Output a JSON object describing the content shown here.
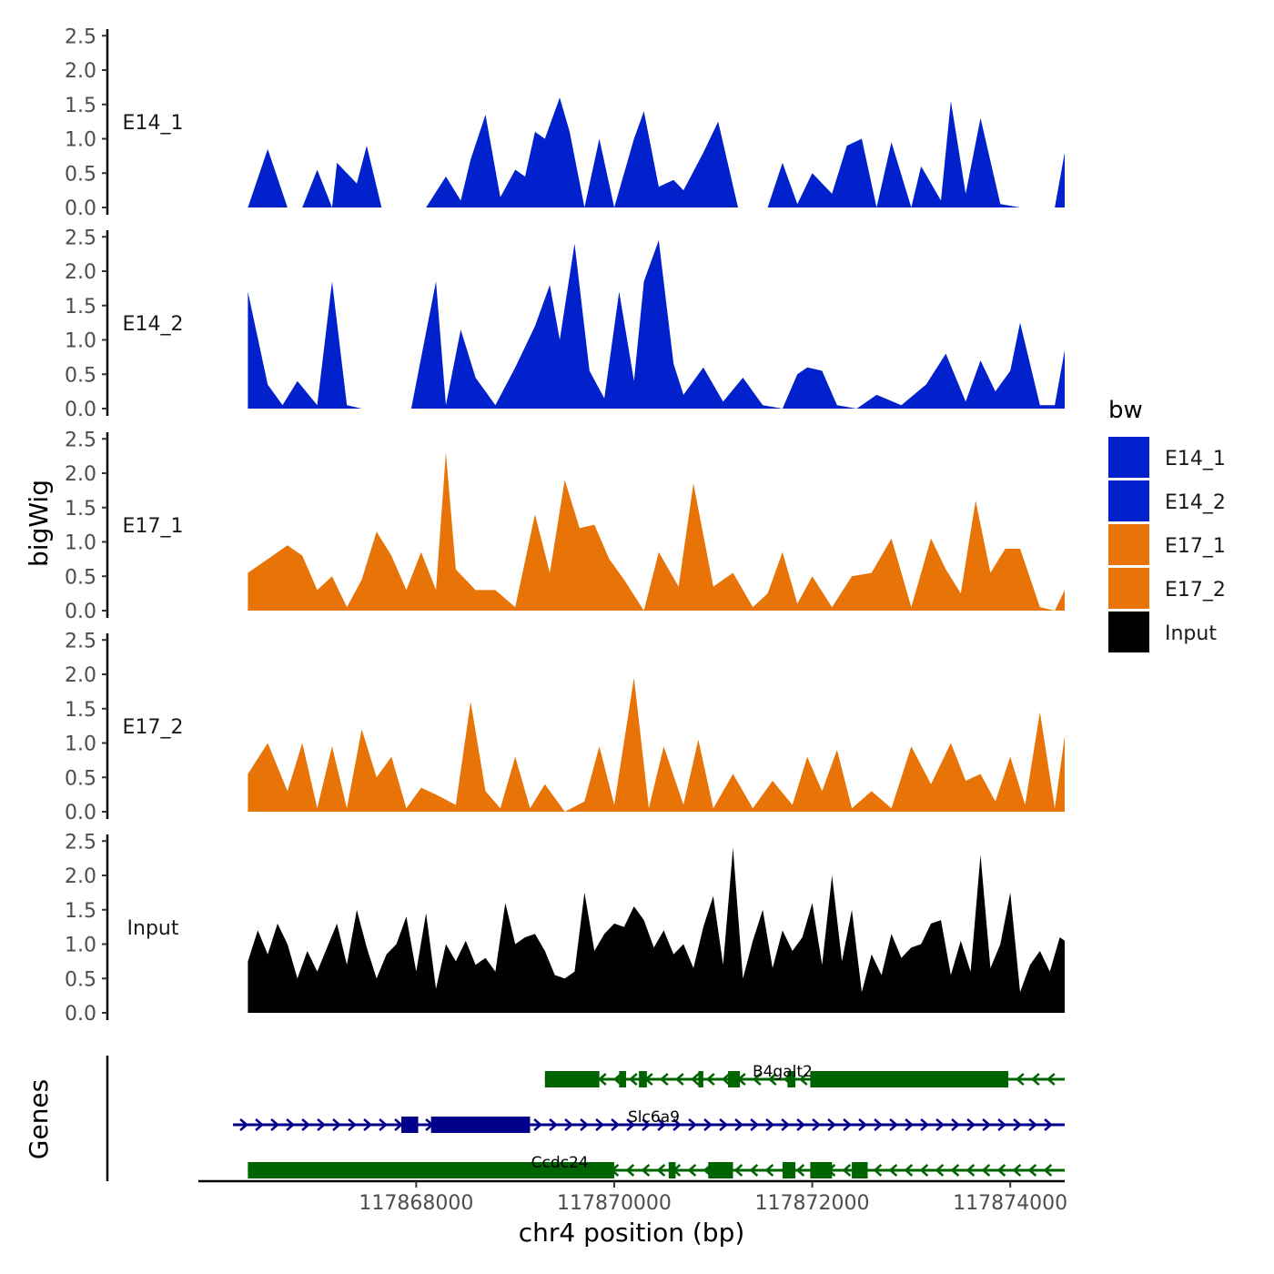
{
  "chart_data": {
    "type": "area",
    "title": "",
    "xlabel": "chr4 position (bp)",
    "ylabel": "bigWig",
    "genes_label": "Genes",
    "xlim": [
      117865800,
      117874550
    ],
    "x_ticks": [
      117868000,
      117870000,
      117872000,
      117874000
    ],
    "x_tick_labels": [
      "117868000",
      "117870000",
      "117872000",
      "117874000"
    ],
    "ylim": [
      0,
      2.6
    ],
    "y_ticks": [
      0,
      0.5,
      1,
      1.5,
      2,
      2.5
    ],
    "y_tick_labels": [
      "0.0",
      "0.5",
      "1.0",
      "1.5",
      "2.0",
      "2.5"
    ],
    "legend": {
      "title": "bw",
      "position": "right",
      "entries": [
        {
          "name": "E14_1",
          "color": "#0021CC"
        },
        {
          "name": "E14_2",
          "color": "#0021CC"
        },
        {
          "name": "E17_1",
          "color": "#E87306"
        },
        {
          "name": "E17_2",
          "color": "#E87306"
        },
        {
          "name": "Input",
          "color": "#000000"
        }
      ]
    },
    "series": [
      {
        "name": "E14_1",
        "color": "#0021CC",
        "x": [
          117866300,
          117866500,
          117866700,
          117866850,
          117867000,
          117867150,
          117867200,
          117867400,
          117867500,
          117867650,
          117867700,
          117867850,
          117867950,
          117868100,
          117868300,
          117868450,
          117868550,
          117868700,
          117868850,
          117869000,
          117869100,
          117869200,
          117869300,
          117869450,
          117869550,
          117869700,
          117869850,
          117870000,
          117870200,
          117870300,
          117870450,
          117870600,
          117870700,
          117870900,
          117871050,
          117871250,
          117871550,
          117871700,
          117871850,
          117872000,
          117872200,
          117872350,
          117872500,
          117872650,
          117872800,
          117873000,
          117873100,
          117873300,
          117873400,
          117873550,
          117873700,
          117873900,
          117874100,
          117874250,
          117874450,
          117874550
        ],
        "y": [
          0,
          0.85,
          0,
          0,
          0.55,
          0,
          0.65,
          0.35,
          0.9,
          0,
          0,
          0,
          0,
          0,
          0.45,
          0.1,
          0.7,
          1.35,
          0.15,
          0.55,
          0.45,
          1.1,
          1.0,
          1.6,
          1.1,
          0,
          1.0,
          0,
          1.0,
          1.4,
          0.3,
          0.4,
          0.25,
          0.8,
          1.25,
          0,
          0,
          0.65,
          0.05,
          0.5,
          0.2,
          0.9,
          1.0,
          0,
          0.95,
          0,
          0.6,
          0.1,
          1.55,
          0.2,
          1.3,
          0.05,
          0,
          0,
          0,
          0.8
        ]
      },
      {
        "name": "E14_2",
        "color": "#0021CC",
        "x": [
          117866300,
          117866500,
          117866650,
          117866800,
          117867000,
          117867150,
          117867300,
          117867450,
          117867700,
          117867950,
          117868200,
          117868300,
          117868450,
          117868600,
          117868800,
          117869000,
          117869200,
          117869350,
          117869450,
          117869600,
          117869750,
          117869900,
          117870050,
          117870200,
          117870300,
          117870450,
          117870600,
          117870700,
          117870900,
          117871100,
          117871300,
          117871500,
          117871700,
          117871850,
          117871950,
          117872100,
          117872250,
          117872450,
          117872650,
          117872900,
          117873150,
          117873350,
          117873550,
          117873700,
          117873850,
          117874000,
          117874100,
          117874300,
          117874450,
          117874550
        ],
        "y": [
          1.7,
          0.35,
          0.05,
          0.4,
          0.05,
          1.85,
          0.05,
          0,
          0,
          0,
          1.85,
          0.05,
          1.15,
          0.45,
          0.05,
          0.6,
          1.2,
          1.8,
          1.0,
          2.4,
          0.55,
          0.15,
          1.7,
          0.4,
          1.85,
          2.45,
          0.65,
          0.2,
          0.6,
          0.1,
          0.45,
          0.05,
          0,
          0.5,
          0.6,
          0.55,
          0.05,
          0,
          0.2,
          0.05,
          0.35,
          0.8,
          0.1,
          0.7,
          0.25,
          0.55,
          1.25,
          0.05,
          0.05,
          0.85
        ]
      },
      {
        "name": "E17_1",
        "color": "#E87306",
        "x": [
          117866300,
          117866500,
          117866700,
          117866850,
          117867000,
          117867150,
          117867300,
          117867450,
          117867600,
          117867750,
          117867900,
          117868050,
          117868200,
          117868300,
          117868400,
          117868600,
          117868800,
          117869000,
          117869200,
          117869350,
          117869500,
          117869650,
          117869800,
          117869950,
          117870100,
          117870300,
          117870450,
          117870650,
          117870800,
          117871000,
          117871200,
          117871400,
          117871550,
          117871700,
          117871850,
          117872000,
          117872200,
          117872400,
          117872600,
          117872800,
          117873000,
          117873200,
          117873350,
          117873500,
          117873650,
          117873800,
          117873950,
          117874100,
          117874300,
          117874450,
          117874550
        ],
        "y": [
          0.55,
          0.75,
          0.95,
          0.8,
          0.3,
          0.5,
          0.05,
          0.45,
          1.15,
          0.8,
          0.3,
          0.85,
          0.3,
          2.3,
          0.6,
          0.3,
          0.3,
          0.05,
          1.4,
          0.55,
          1.9,
          1.2,
          1.25,
          0.75,
          0.45,
          0,
          0.85,
          0.35,
          1.85,
          0.35,
          0.55,
          0.05,
          0.25,
          0.85,
          0.1,
          0.5,
          0.05,
          0.5,
          0.55,
          1.05,
          0.05,
          1.05,
          0.6,
          0.25,
          1.6,
          0.55,
          0.9,
          0.9,
          0.05,
          0,
          0.3
        ]
      },
      {
        "name": "E17_2",
        "color": "#E87306",
        "x": [
          117866300,
          117866500,
          117866700,
          117866850,
          117867000,
          117867150,
          117867300,
          117867450,
          117867600,
          117867750,
          117867900,
          117868050,
          117868200,
          117868400,
          117868550,
          117868700,
          117868850,
          117869000,
          117869150,
          117869300,
          117869500,
          117869700,
          117869850,
          117870000,
          117870200,
          117870350,
          117870500,
          117870700,
          117870850,
          117871000,
          117871200,
          117871400,
          117871600,
          117871800,
          117871950,
          117872100,
          117872250,
          117872400,
          117872600,
          117872800,
          117873000,
          117873200,
          117873400,
          117873550,
          117873700,
          117873850,
          117874000,
          117874150,
          117874300,
          117874450,
          117874550
        ],
        "y": [
          0.55,
          1.0,
          0.3,
          1.0,
          0.05,
          0.95,
          0.05,
          1.2,
          0.5,
          0.8,
          0.05,
          0.35,
          0.25,
          0.1,
          1.6,
          0.3,
          0.05,
          0.8,
          0.05,
          0.4,
          0,
          0.15,
          0.95,
          0.1,
          1.95,
          0.05,
          0.95,
          0.1,
          1.05,
          0.05,
          0.55,
          0.05,
          0.45,
          0.1,
          0.8,
          0.3,
          0.9,
          0.05,
          0.3,
          0.05,
          0.95,
          0.4,
          1.0,
          0.45,
          0.55,
          0.15,
          0.8,
          0.1,
          1.45,
          0.05,
          1.1
        ]
      },
      {
        "name": "Input",
        "color": "#000000",
        "x": [
          117866300,
          117866400,
          117866500,
          117866600,
          117866700,
          117866800,
          117866900,
          117867000,
          117867100,
          117867200,
          117867300,
          117867400,
          117867500,
          117867600,
          117867700,
          117867800,
          117867900,
          117868000,
          117868100,
          117868200,
          117868300,
          117868400,
          117868500,
          117868600,
          117868700,
          117868800,
          117868900,
          117869000,
          117869100,
          117869200,
          117869300,
          117869400,
          117869500,
          117869600,
          117869700,
          117869800,
          117869900,
          117870000,
          117870100,
          117870200,
          117870300,
          117870400,
          117870500,
          117870600,
          117870700,
          117870800,
          117870900,
          117871000,
          117871100,
          117871200,
          117871300,
          117871400,
          117871500,
          117871600,
          117871700,
          117871800,
          117871900,
          117872000,
          117872100,
          117872200,
          117872300,
          117872400,
          117872500,
          117872600,
          117872700,
          117872800,
          117872900,
          117873000,
          117873100,
          117873200,
          117873300,
          117873400,
          117873500,
          117873600,
          117873700,
          117873800,
          117873900,
          117874000,
          117874100,
          117874200,
          117874300,
          117874400,
          117874500,
          117874550
        ],
        "y": [
          0.75,
          1.2,
          0.85,
          1.3,
          1.0,
          0.5,
          0.9,
          0.6,
          0.95,
          1.3,
          0.7,
          1.5,
          0.95,
          0.5,
          0.85,
          1.0,
          1.4,
          0.6,
          1.45,
          0.35,
          1.0,
          0.75,
          1.05,
          0.7,
          0.8,
          0.6,
          1.6,
          1.0,
          1.1,
          1.15,
          0.9,
          0.55,
          0.5,
          0.6,
          1.75,
          0.9,
          1.15,
          1.3,
          1.25,
          1.55,
          1.35,
          0.95,
          1.2,
          0.85,
          1.0,
          0.65,
          1.25,
          1.7,
          0.7,
          2.4,
          0.5,
          1.05,
          1.5,
          0.65,
          1.2,
          0.9,
          1.1,
          1.6,
          0.7,
          2.0,
          0.75,
          1.5,
          0.3,
          0.85,
          0.55,
          1.15,
          0.8,
          0.95,
          1.0,
          1.3,
          1.35,
          0.55,
          1.05,
          0.6,
          2.3,
          0.65,
          1.0,
          1.75,
          0.3,
          0.7,
          0.9,
          0.6,
          1.1,
          1.05
        ]
      }
    ],
    "genes": [
      {
        "name": "B4galt2",
        "strand": "-",
        "color": "#006400",
        "start": 117869300,
        "end": 117874550,
        "exons": [
          [
            117869300,
            117869850
          ],
          [
            117870050,
            117870120
          ],
          [
            117870250,
            117870330
          ],
          [
            117870850,
            117870900
          ],
          [
            117871150,
            117871270
          ],
          [
            117871750,
            117871830
          ],
          [
            117871980,
            117873980
          ]
        ]
      },
      {
        "name": "Slc6a9",
        "strand": "+",
        "color": "#00008B",
        "start": 117866150,
        "end": 117874550,
        "exons": [
          [
            117867850,
            117868020
          ],
          [
            117868150,
            117869150
          ]
        ]
      },
      {
        "name": "Ccdc24",
        "strand": "-",
        "color": "#006400",
        "start": 117866300,
        "end": 117874550,
        "exons": [
          [
            117866300,
            117870000
          ],
          [
            117870550,
            117870620
          ],
          [
            117870950,
            117871200
          ],
          [
            117871700,
            117871830
          ],
          [
            117871980,
            117872200
          ],
          [
            117872400,
            117872560
          ]
        ]
      }
    ]
  }
}
